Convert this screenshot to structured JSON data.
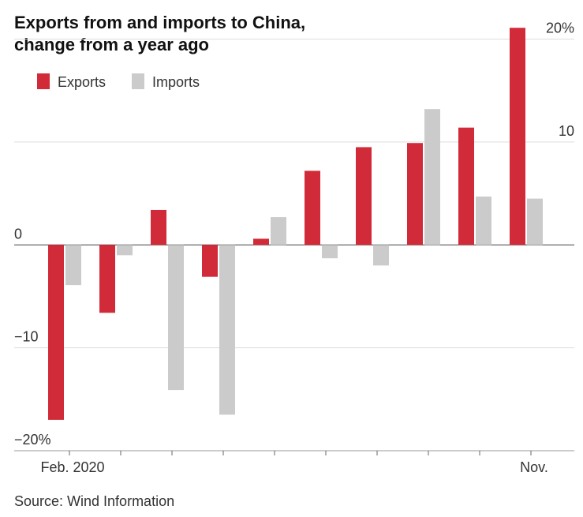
{
  "chart_data": {
    "type": "bar",
    "title": [
      "Exports from and imports to China,",
      "change from a year ago"
    ],
    "categories": [
      "Feb. 2020",
      null,
      null,
      null,
      null,
      null,
      null,
      null,
      null,
      "Nov."
    ],
    "series": [
      {
        "name": "Exports",
        "color": "#d12b3a",
        "values": [
          -17.0,
          -6.6,
          3.4,
          -3.1,
          0.6,
          7.2,
          9.5,
          9.9,
          11.4,
          21.1
        ]
      },
      {
        "name": "Imports",
        "color": "#cbcbcb",
        "values": [
          -3.9,
          -1.0,
          -14.1,
          -16.5,
          2.7,
          -1.3,
          -2.0,
          13.2,
          4.7,
          4.5
        ]
      }
    ],
    "ylim": [
      -20,
      21.5
    ],
    "yticks": [
      {
        "value": 20,
        "label": "20%"
      },
      10,
      0,
      {
        "value": -10,
        "label": "−10"
      },
      {
        "value": -20,
        "label": "−20%"
      }
    ],
    "grid": true,
    "source": "Source: Wind Information"
  }
}
